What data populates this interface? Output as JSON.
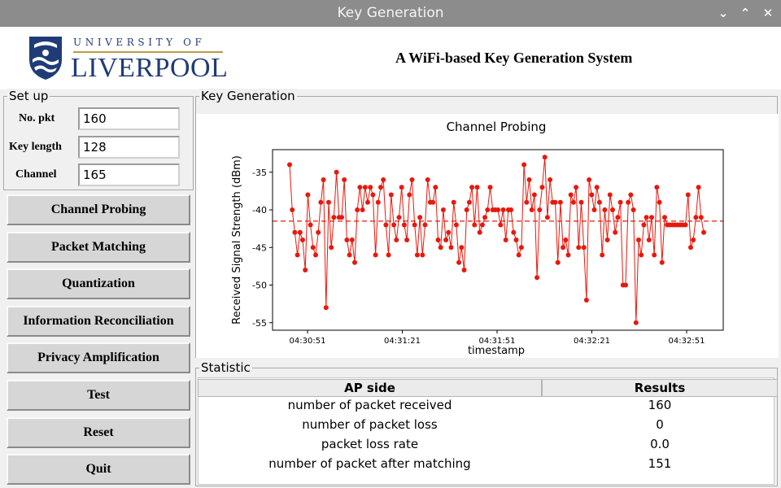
{
  "window": {
    "title": "Key Generation",
    "controls": [
      "minimize",
      "maximize",
      "close"
    ]
  },
  "header": {
    "logo_top": "UNIVERSITY OF",
    "logo_main": "LIVERPOOL",
    "app_title": "A WiFi-based Key Generation System"
  },
  "setup": {
    "label": "Set up",
    "fields": [
      {
        "label": "No. pkt",
        "value": "160"
      },
      {
        "label": "Key length",
        "value": "128"
      },
      {
        "label": "Channel",
        "value": "165"
      }
    ]
  },
  "buttons": [
    {
      "label": "Channel Probing"
    },
    {
      "label": "Packet Matching"
    },
    {
      "label": "Quantization"
    },
    {
      "label": "Information Reconciliation"
    },
    {
      "label": "Privacy Amplification"
    },
    {
      "label": "Test"
    },
    {
      "label": "Reset"
    },
    {
      "label": "Quit"
    }
  ],
  "keygen_panel": {
    "label": "Key Generation"
  },
  "chart_data": {
    "type": "line",
    "title": "Channel Probing",
    "xlabel": "timestamp",
    "ylabel": "Received Signal Strength (dBm)",
    "xticks": [
      "04:30:51",
      "04:31:21",
      "04:31:51",
      "04:32:21",
      "04:32:51"
    ],
    "yticks": [
      -35,
      -40,
      -45,
      -50,
      -55
    ],
    "ylim": [
      -56,
      -32
    ],
    "reference_line": -41.5,
    "line_color": "#e8180c",
    "mean_color": "#e8180c",
    "values": [
      -34,
      -40,
      -43,
      -46,
      -43,
      -44,
      -48,
      -38,
      -42,
      -45,
      -46,
      -43,
      -39,
      -36,
      -53,
      -39,
      -45,
      -41,
      -35,
      -41,
      -41,
      -36,
      -44,
      -46,
      -44,
      -47,
      -40,
      -37,
      -40,
      -37,
      -39,
      -37,
      -38,
      -46,
      -39,
      -37,
      -36,
      -42,
      -46,
      -38,
      -42,
      -44,
      -41,
      -37,
      -42,
      -44,
      -38,
      -36,
      -42,
      -46,
      -41,
      -46,
      -42,
      -36,
      -39,
      -39,
      -37,
      -44,
      -45,
      -40,
      -44,
      -43,
      -45,
      -39,
      -42,
      -47,
      -45,
      -48,
      -40,
      -39,
      -37,
      -42,
      -37,
      -43,
      -42,
      -41,
      -40,
      -37,
      -40,
      -40,
      -40,
      -42,
      -40,
      -44,
      -40,
      -40,
      -43,
      -44,
      -46,
      -45,
      -34,
      -39,
      -36,
      -40,
      -38,
      -49,
      -40,
      -37,
      -33,
      -41,
      -36,
      -39,
      -39,
      -47,
      -39,
      -45,
      -44,
      -46,
      -38,
      -39,
      -37,
      -45,
      -39,
      -45,
      -52,
      -36,
      -38,
      -40,
      -37,
      -39,
      -46,
      -40,
      -44,
      -38,
      -40,
      -43,
      -41,
      -39,
      -50,
      -50,
      -39,
      -38,
      -40,
      -55,
      -44,
      -46,
      -42,
      -41,
      -44,
      -41,
      -46,
      -37,
      -39,
      -47,
      -41,
      -42,
      -42,
      -42,
      -42,
      -42,
      -42,
      -42,
      -42,
      -38,
      -45,
      -44,
      -41,
      -37,
      -41,
      -43
    ]
  },
  "statistic": {
    "label": "Statistic",
    "headers": [
      "AP side",
      "Results"
    ],
    "rows": [
      {
        "name": "number of packet received",
        "value": "160"
      },
      {
        "name": "number of packet loss",
        "value": "0"
      },
      {
        "name": "packet loss rate",
        "value": "0.0"
      },
      {
        "name": "number of packet after matching",
        "value": "151"
      }
    ]
  }
}
